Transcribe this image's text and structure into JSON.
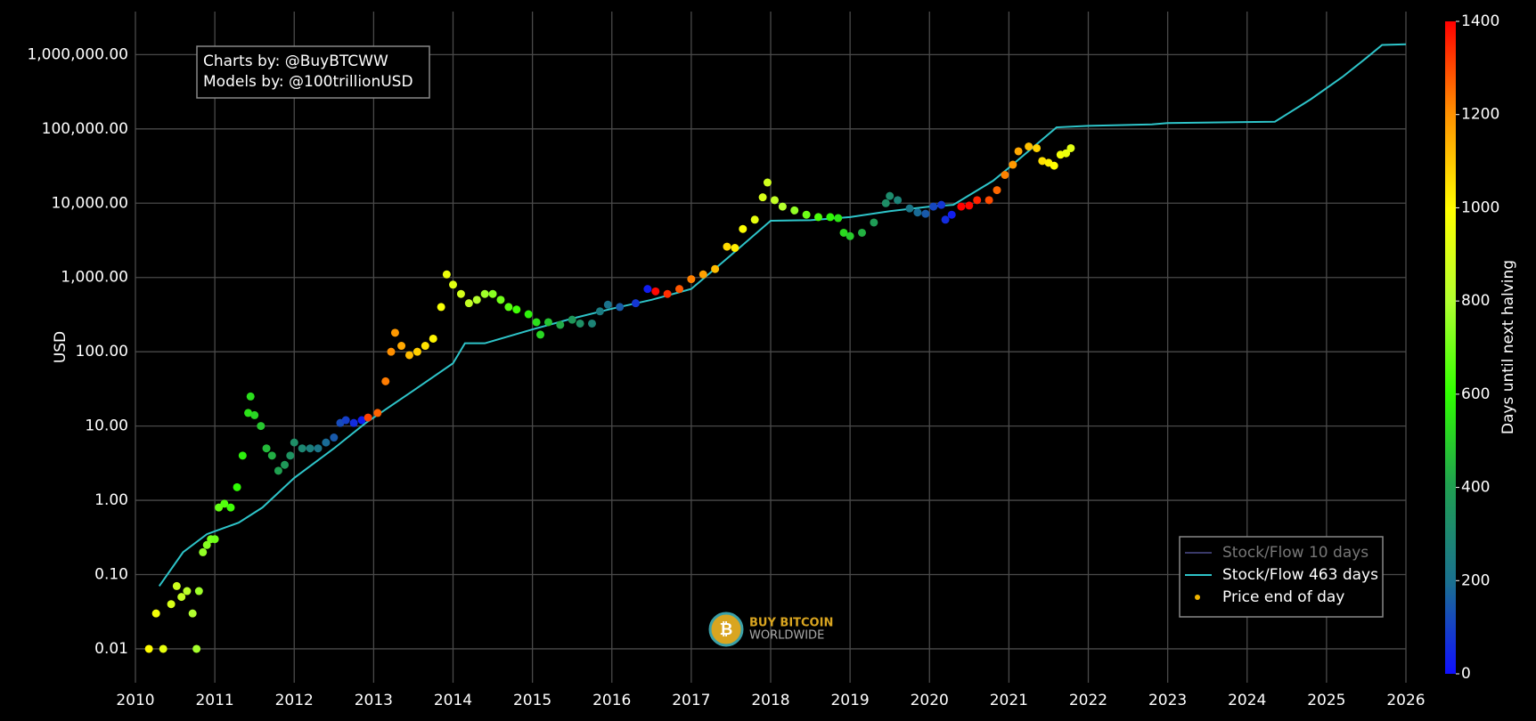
{
  "chart_data": {
    "type": "scatter",
    "y_label": "USD",
    "y_log": true,
    "grid": true,
    "background": "#000000",
    "xlim": [
      2010,
      2026
    ],
    "xticks": [
      2010,
      2011,
      2012,
      2013,
      2014,
      2015,
      2016,
      2017,
      2018,
      2019,
      2020,
      2021,
      2022,
      2023,
      2024,
      2025,
      2026
    ],
    "ylim": [
      0.0035,
      3800000
    ],
    "yticks": [
      {
        "value": 0.01,
        "label": "0.01"
      },
      {
        "value": 0.1,
        "label": "0.10"
      },
      {
        "value": 1,
        "label": "1.00"
      },
      {
        "value": 10,
        "label": "10.00"
      },
      {
        "value": 100,
        "label": "100.00"
      },
      {
        "value": 1000,
        "label": "1,000.00"
      },
      {
        "value": 10000,
        "label": "10,000.00"
      },
      {
        "value": 100000,
        "label": "100,000.00"
      },
      {
        "value": 1000000,
        "label": "1,000,000.00"
      }
    ],
    "annotation": [
      "Charts by: @BuyBTCWW",
      "Models by: @100trillionUSD"
    ],
    "watermark": [
      "BUY BITCOIN",
      "WORLDWIDE"
    ],
    "legend_position": "bottom-right",
    "colorbar": {
      "title": "Days until next halving",
      "lim": [
        0,
        1400
      ],
      "ticks": [
        0,
        200,
        400,
        600,
        800,
        1000,
        1200,
        1400
      ],
      "colorscale": [
        [
          0,
          "#1010ff"
        ],
        [
          0.14,
          "#1a7090"
        ],
        [
          0.29,
          "#20a050"
        ],
        [
          0.43,
          "#30ff00"
        ],
        [
          0.57,
          "#b0ff30"
        ],
        [
          0.71,
          "#ffff00"
        ],
        [
          0.86,
          "#ff9000"
        ],
        [
          1,
          "#ff0000"
        ]
      ]
    },
    "series": [
      {
        "name": "Stock/Flow 10 days",
        "color": "#3a3a6a",
        "visible": false
      },
      {
        "name": "Stock/Flow 463 days",
        "color": "#2ec4c9",
        "mode": "line",
        "x": [
          2010.3,
          2010.6,
          2010.9,
          2011.3,
          2011.6,
          2012.0,
          2012.5,
          2012.9,
          2013.5,
          2014.0,
          2014.15,
          2014.4,
          2015.0,
          2015.5,
          2016.0,
          2016.5,
          2017.0,
          2017.5,
          2018.0,
          2018.5,
          2019.0,
          2019.5,
          2020.0,
          2020.3,
          2020.8,
          2021.0,
          2021.6,
          2022.0,
          2022.8,
          2023.0,
          2024.35,
          2024.8,
          2025.2,
          2025.5,
          2025.7,
          2026.0
        ],
        "values": [
          0.07,
          0.2,
          0.35,
          0.5,
          0.8,
          2,
          5,
          11,
          30,
          70,
          130,
          130,
          200,
          280,
          380,
          500,
          700,
          2000,
          5800,
          5900,
          6500,
          7800,
          9000,
          9500,
          20000,
          30000,
          105000,
          110000,
          115000,
          120000,
          125000,
          250000,
          500000,
          900000,
          1350000,
          1380000
        ]
      },
      {
        "name": "Price end of day",
        "color": "#f0b400",
        "mode": "markers",
        "x": [
          2010.17,
          2010.26,
          2010.35,
          2010.45,
          2010.52,
          2010.58,
          2010.65,
          2010.72,
          2010.77,
          2010.8,
          2010.85,
          2010.9,
          2010.95,
          2011.0,
          2011.05,
          2011.12,
          2011.2,
          2011.28,
          2011.35,
          2011.42,
          2011.45,
          2011.5,
          2011.58,
          2011.65,
          2011.72,
          2011.8,
          2011.88,
          2011.95,
          2012.0,
          2012.1,
          2012.2,
          2012.3,
          2012.4,
          2012.5,
          2012.58,
          2012.65,
          2012.75,
          2012.85,
          2012.93,
          2013.05,
          2013.15,
          2013.22,
          2013.27,
          2013.35,
          2013.45,
          2013.55,
          2013.65,
          2013.75,
          2013.85,
          2013.92,
          2014.0,
          2014.1,
          2014.2,
          2014.3,
          2014.4,
          2014.5,
          2014.6,
          2014.7,
          2014.8,
          2014.95,
          2015.05,
          2015.1,
          2015.2,
          2015.35,
          2015.5,
          2015.6,
          2015.75,
          2015.85,
          2015.95,
          2016.1,
          2016.3,
          2016.45,
          2016.55,
          2016.7,
          2016.85,
          2017.0,
          2017.15,
          2017.3,
          2017.45,
          2017.55,
          2017.65,
          2017.8,
          2017.9,
          2017.96,
          2018.05,
          2018.15,
          2018.3,
          2018.45,
          2018.6,
          2018.75,
          2018.85,
          2018.92,
          2019.0,
          2019.15,
          2019.3,
          2019.45,
          2019.5,
          2019.6,
          2019.75,
          2019.85,
          2019.95,
          2020.05,
          2020.15,
          2020.2,
          2020.28,
          2020.4,
          2020.5,
          2020.6,
          2020.75,
          2020.85,
          2020.95,
          2021.05,
          2021.12,
          2021.25,
          2021.35,
          2021.42,
          2021.5,
          2021.57,
          2021.65,
          2021.72,
          2021.78
        ],
        "values": [
          0.01,
          0.03,
          0.01,
          0.04,
          0.07,
          0.05,
          0.06,
          0.03,
          0.01,
          0.06,
          0.2,
          0.25,
          0.3,
          0.3,
          0.8,
          0.9,
          0.8,
          1.5,
          4,
          15,
          25,
          14,
          10,
          5,
          4,
          2.5,
          3,
          4,
          6,
          5,
          5,
          5,
          6,
          7,
          11,
          12,
          11,
          12,
          13,
          15,
          40,
          100,
          180,
          120,
          90,
          100,
          120,
          150,
          400,
          1100,
          800,
          600,
          450,
          500,
          600,
          600,
          500,
          400,
          370,
          320,
          250,
          170,
          250,
          230,
          270,
          240,
          240,
          350,
          430,
          400,
          450,
          700,
          650,
          600,
          700,
          950,
          1100,
          1300,
          2600,
          2500,
          4500,
          6000,
          12000,
          19000,
          11000,
          9000,
          8000,
          7000,
          6500,
          6500,
          6300,
          4000,
          3600,
          4000,
          5500,
          10000,
          12500,
          11000,
          8500,
          7500,
          7200,
          9000,
          9500,
          6000,
          7000,
          9000,
          9300,
          11000,
          11000,
          15000,
          24000,
          33000,
          50000,
          58000,
          55000,
          37000,
          35000,
          32000,
          45000,
          47000,
          55000
        ],
        "color_values": [
          1000,
          967,
          935,
          898,
          873,
          851,
          825,
          800,
          782,
          771,
          752,
          734,
          716,
          698,
          679,
          654,
          625,
          595,
          570,
          544,
          533,
          515,
          486,
          460,
          435,
          405,
          376,
          350,
          332,
          296,
          259,
          223,
          186,
          150,
          120,
          95,
          58,
          22,
          1311,
          1267,
          1231,
          1205,
          1187,
          1158,
          1121,
          1085,
          1048,
          1012,
          975,
          950,
          920,
          884,
          847,
          811,
          774,
          738,
          701,
          665,
          628,
          574,
          537,
          519,
          482,
          427,
          373,
          336,
          281,
          245,
          208,
          153,
          80,
          26,
          1392,
          1337,
          1282,
          1227,
          1172,
          1118,
          1063,
          1026,
          990,
          935,
          898,
          876,
          843,
          807,
          752,
          697,
          643,
          588,
          551,
          526,
          497,
          442,
          387,
          332,
          314,
          278,
          223,
          186,
          150,
          113,
          77,
          58,
          29,
          1424,
          1388,
          1351,
          1296,
          1260,
          1223,
          1187,
          1161,
          1114,
          1077,
          1052,
          1023,
          997,
          968,
          943,
          921
        ]
      }
    ]
  }
}
